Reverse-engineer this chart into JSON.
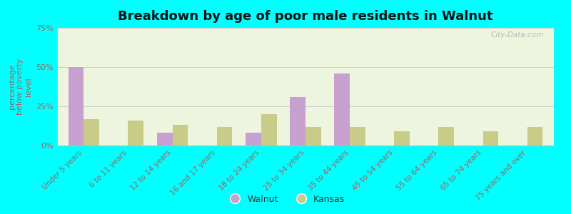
{
  "title": "Breakdown by age of poor male residents in Walnut",
  "categories": [
    "Under 5 years",
    "6 to 11 years",
    "12 to 14 years",
    "16 and 17 years",
    "18 to 24 years",
    "25 to 34 years",
    "35 to 44 years",
    "45 to 54 years",
    "55 to 64 years",
    "65 to 74 years",
    "75 years and over"
  ],
  "walnut_values": [
    50,
    0,
    8,
    0,
    8,
    31,
    46,
    0,
    0,
    0,
    0
  ],
  "kansas_values": [
    17,
    16,
    13,
    12,
    20,
    12,
    12,
    9,
    12,
    9,
    12
  ],
  "walnut_color": "#c8a0d0",
  "kansas_color": "#c8cc88",
  "ylabel": "percentage\nbelow poverty\nlevel",
  "ylim": [
    0,
    75
  ],
  "yticks": [
    0,
    25,
    50,
    75
  ],
  "ytick_labels": [
    "0%",
    "25%",
    "50%",
    "75%"
  ],
  "background_color": "#00ffff",
  "plot_bg_color": "#eef5df",
  "bar_width": 0.35,
  "legend_walnut": "Walnut",
  "legend_kansas": "Kansas",
  "watermark": "City-Data.com",
  "tick_label_color": "#996666",
  "ylabel_color": "#996666",
  "title_color": "#111111",
  "watermark_color": "#aaaaaa"
}
